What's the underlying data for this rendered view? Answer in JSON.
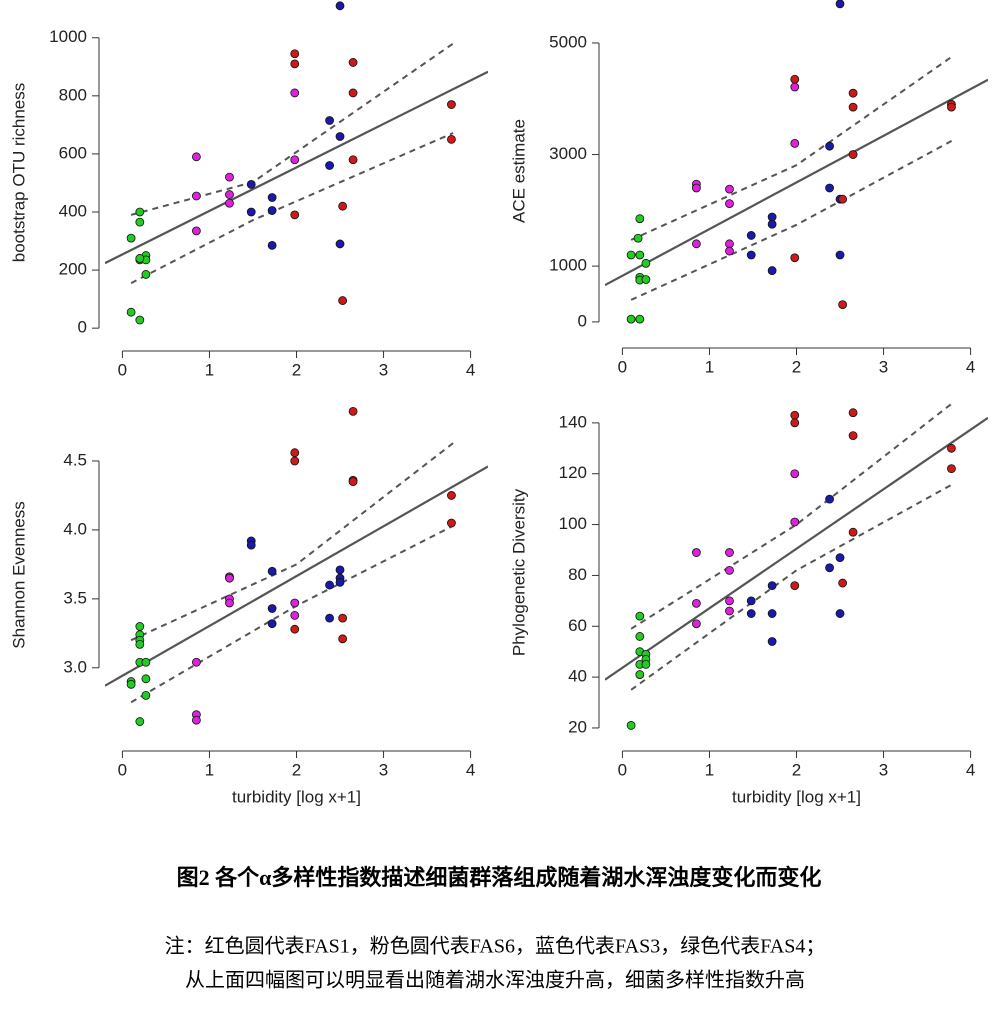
{
  "chart_data": [
    {
      "type": "scatter",
      "y_label": "bootstrap OTU richness",
      "xlim": [
        -0.2,
        4.2
      ],
      "ylim": [
        -58,
        1130
      ],
      "xticks": [
        0,
        1,
        2,
        3,
        4
      ],
      "yticks": [
        0,
        200,
        400,
        600,
        800,
        1000
      ],
      "series": [
        {
          "color": "#22cc22",
          "x": [
            0.2,
            0.2,
            0.1,
            0.2,
            0.27,
            0.27,
            0.27,
            0.1,
            0.2,
            0.2
          ],
          "values": [
            400,
            365,
            310,
            235,
            250,
            235,
            185,
            55,
            28,
            240
          ]
        },
        {
          "color": "#dd22dd",
          "x": [
            0.85,
            0.85,
            0.85,
            1.23,
            1.23,
            1.23,
            1.98,
            1.98
          ],
          "values": [
            590,
            455,
            335,
            520,
            460,
            430,
            810,
            580
          ]
        },
        {
          "color": "#1a1aaa",
          "x": [
            1.48,
            1.48,
            1.72,
            1.72,
            1.72,
            2.38,
            2.38,
            2.5,
            2.5,
            2.5
          ],
          "values": [
            495,
            400,
            450,
            405,
            285,
            715,
            560,
            660,
            290,
            1110
          ]
        },
        {
          "color": "#cc1a1a",
          "x": [
            1.98,
            1.98,
            1.98,
            2.65,
            2.65,
            2.65,
            2.53,
            2.53,
            3.78,
            3.78
          ],
          "values": [
            945,
            910,
            390,
            915,
            810,
            580,
            420,
            95,
            770,
            650
          ]
        }
      ],
      "fit": {
        "x": [
          -0.2,
          4.2
        ],
        "values": [
          224,
          883
        ]
      },
      "ci_upper": {
        "x": [
          0.1,
          1.5,
          3.8
        ],
        "values": [
          390,
          503,
          980
        ]
      },
      "ci_lower": {
        "x": [
          0.1,
          1.5,
          3.8
        ],
        "values": [
          155,
          372,
          672
        ]
      }
    },
    {
      "type": "scatter",
      "y_label": "ACE estimate",
      "xlim": [
        -0.2,
        4.2
      ],
      "ylim": [
        -360,
        5770
      ],
      "xticks": [
        0,
        1,
        2,
        3,
        4
      ],
      "yticks": [
        0,
        1000,
        3000,
        5000
      ],
      "series": [
        {
          "color": "#22cc22",
          "x": [
            0.2,
            0.18,
            0.1,
            0.2,
            0.27,
            0.2,
            0.2,
            0.27,
            0.1,
            0.2
          ],
          "values": [
            1850,
            1500,
            1200,
            1200,
            1050,
            800,
            750,
            760,
            50,
            50
          ]
        },
        {
          "color": "#dd22dd",
          "x": [
            0.85,
            0.85,
            0.85,
            1.23,
            1.23,
            1.23,
            1.23,
            1.98,
            1.98
          ],
          "values": [
            2470,
            2400,
            1400,
            2380,
            2120,
            1400,
            1270,
            4210,
            3200
          ]
        },
        {
          "color": "#1a1aaa",
          "x": [
            1.48,
            1.48,
            1.72,
            1.72,
            1.72,
            2.38,
            2.38,
            2.5,
            2.5,
            2.5
          ],
          "values": [
            1550,
            1200,
            1880,
            1750,
            920,
            3150,
            2400,
            2200,
            1200,
            5700
          ]
        },
        {
          "color": "#cc1a1a",
          "x": [
            1.98,
            1.98,
            2.65,
            2.65,
            2.65,
            2.53,
            2.53,
            3.78,
            3.78
          ],
          "values": [
            4350,
            1150,
            4100,
            3850,
            3000,
            2200,
            310,
            3900,
            3850
          ]
        }
      ],
      "fit": {
        "x": [
          -0.2,
          4.2
        ],
        "values": [
          660,
          4340
        ]
      },
      "ci_upper": {
        "x": [
          0.1,
          2,
          3.8
        ],
        "values": [
          1470,
          2810,
          4770
        ]
      },
      "ci_lower": {
        "x": [
          0.1,
          2,
          3.8
        ],
        "values": [
          395,
          1740,
          3260
        ]
      }
    },
    {
      "type": "scatter",
      "y_label": "Shannon Evenness",
      "x_label": "turbidity [log x+1]",
      "xlim": [
        -0.2,
        4.2
      ],
      "ylim": [
        2.44,
        4.906
      ],
      "xticks": [
        0,
        1,
        2,
        3,
        4
      ],
      "yticks": [
        {
          "value": 3,
          "label": "3.0"
        },
        3.5,
        {
          "value": 4,
          "label": "4.0"
        },
        4.5
      ],
      "series": [
        {
          "color": "#22cc22",
          "x": [
            0.2,
            0.2,
            0.2,
            0.2,
            0.2,
            0.27,
            0.27,
            0.1,
            0.1,
            0.27,
            0.2
          ],
          "values": [
            3.3,
            3.24,
            3.2,
            3.17,
            3.04,
            3.04,
            2.92,
            2.9,
            2.88,
            2.8,
            2.61
          ]
        },
        {
          "color": "#dd22dd",
          "x": [
            0.85,
            0.85,
            0.85,
            1.23,
            1.23,
            1.23,
            1.23,
            1.98,
            1.98
          ],
          "values": [
            3.04,
            2.66,
            2.62,
            3.66,
            3.65,
            3.5,
            3.47,
            3.47,
            3.38
          ]
        },
        {
          "color": "#1a1aaa",
          "x": [
            1.48,
            1.48,
            1.72,
            1.72,
            1.72,
            2.38,
            2.38,
            2.5,
            2.5,
            2.5
          ],
          "values": [
            3.92,
            3.89,
            3.7,
            3.43,
            3.32,
            3.6,
            3.36,
            3.71,
            3.65,
            3.62
          ]
        },
        {
          "color": "#cc1a1a",
          "x": [
            1.98,
            1.98,
            1.98,
            2.65,
            2.65,
            2.65,
            2.53,
            2.53,
            3.78,
            3.78
          ],
          "values": [
            4.56,
            4.5,
            3.28,
            4.86,
            4.36,
            4.35,
            3.36,
            3.21,
            4.25,
            4.05
          ]
        }
      ],
      "fit": {
        "x": [
          -0.2,
          4.2
        ],
        "values": [
          2.87,
          4.46
        ]
      },
      "ci_upper": {
        "x": [
          0.1,
          2,
          3.8
        ],
        "values": [
          3.2,
          3.75,
          4.63
        ]
      },
      "ci_lower": {
        "x": [
          0.1,
          2,
          3.8
        ],
        "values": [
          2.75,
          3.45,
          4.03
        ]
      }
    },
    {
      "type": "scatter",
      "y_label": "Phylogenetic Diversity",
      "x_label": "turbidity [log x+1]",
      "xlim": [
        -0.2,
        4.2
      ],
      "ylim": [
        13.3,
        149
      ],
      "xticks": [
        0,
        1,
        2,
        3,
        4
      ],
      "yticks": [
        20,
        40,
        60,
        80,
        100,
        120,
        140
      ],
      "series": [
        {
          "color": "#22cc22",
          "x": [
            0.2,
            0.2,
            0.2,
            0.27,
            0.27,
            0.2,
            0.27,
            0.2,
            0.1
          ],
          "values": [
            64,
            56,
            50,
            49,
            47,
            45,
            45,
            41,
            21
          ]
        },
        {
          "color": "#dd22dd",
          "x": [
            0.85,
            0.85,
            0.85,
            1.23,
            1.23,
            1.23,
            1.23,
            1.98,
            1.98
          ],
          "values": [
            89,
            69,
            61,
            89,
            82,
            70,
            66,
            120,
            101
          ]
        },
        {
          "color": "#1a1aaa",
          "x": [
            1.48,
            1.48,
            1.72,
            1.72,
            1.72,
            2.38,
            2.38,
            2.5,
            2.5
          ],
          "values": [
            70,
            65,
            76,
            65,
            54,
            110,
            83,
            87,
            65
          ]
        },
        {
          "color": "#cc1a1a",
          "x": [
            1.98,
            1.98,
            1.98,
            2.65,
            2.65,
            2.65,
            2.53,
            3.78,
            3.78
          ],
          "values": [
            143,
            140,
            76,
            144,
            135,
            97,
            77,
            130,
            122
          ]
        }
      ],
      "fit": {
        "x": [
          -0.2,
          4.2
        ],
        "values": [
          39,
          142
        ]
      },
      "ci_upper": {
        "x": [
          0.1,
          2,
          3.8
        ],
        "values": [
          59,
          100,
          148
        ]
      },
      "ci_lower": {
        "x": [
          0.1,
          2,
          3.8
        ],
        "values": [
          35,
          82,
          116
        ]
      }
    }
  ],
  "caption": "图2   各个α多样性指数描述细菌群落组成随着湖水浑浊度变化而变化",
  "note": [
    "注：红色圆代表FAS1，粉色圆代表FAS6，蓝色代表FAS3，绿色代表FAS4；",
    "从上面四幅图可以明显看出随着湖水浑浊度升高，细菌多样性指数升高"
  ]
}
